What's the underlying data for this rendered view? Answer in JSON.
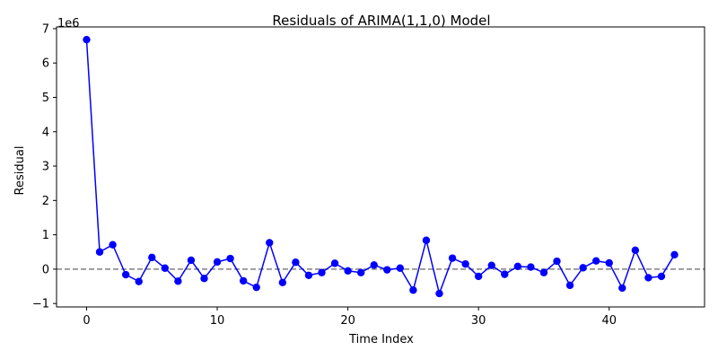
{
  "chart_data": {
    "type": "line",
    "title": "Residuals of ARIMA(1,1,0) Model",
    "xlabel": "Time Index",
    "ylabel": "Residual",
    "y_offset_text": "1e6",
    "y_scale_factor": 1000000,
    "xlim": [
      -2.3,
      47.3
    ],
    "ylim": [
      -1100000,
      7050000
    ],
    "x_ticks": [
      0,
      10,
      20,
      30,
      40
    ],
    "y_ticks": [
      -1000000,
      0,
      1000000,
      2000000,
      3000000,
      4000000,
      5000000,
      6000000,
      7000000
    ],
    "y_tick_labels": [
      "−1",
      "0",
      "1",
      "2",
      "3",
      "4",
      "5",
      "6",
      "7"
    ],
    "grid": false,
    "reference_line": {
      "y": 0,
      "style": "dashed",
      "color": "#808080"
    },
    "series": [
      {
        "color": "#0000ff",
        "marker": "circle",
        "x": [
          0,
          1,
          2,
          3,
          4,
          5,
          6,
          7,
          8,
          9,
          10,
          11,
          12,
          13,
          14,
          15,
          16,
          17,
          18,
          19,
          20,
          21,
          22,
          23,
          24,
          25,
          26,
          27,
          28,
          29,
          30,
          31,
          32,
          33,
          34,
          35,
          36,
          37,
          38,
          39,
          40,
          41,
          42,
          43,
          44,
          45
        ],
        "values": [
          6680000,
          500000,
          710000,
          -160000,
          -360000,
          340000,
          30000,
          -350000,
          260000,
          -270000,
          210000,
          310000,
          -340000,
          -530000,
          770000,
          -390000,
          200000,
          -180000,
          -100000,
          170000,
          -50000,
          -100000,
          120000,
          -20000,
          30000,
          -610000,
          840000,
          -710000,
          320000,
          150000,
          -210000,
          110000,
          -150000,
          80000,
          60000,
          -100000,
          230000,
          -470000,
          40000,
          240000,
          180000,
          -550000,
          550000,
          -250000,
          -210000,
          420000
        ]
      }
    ]
  }
}
